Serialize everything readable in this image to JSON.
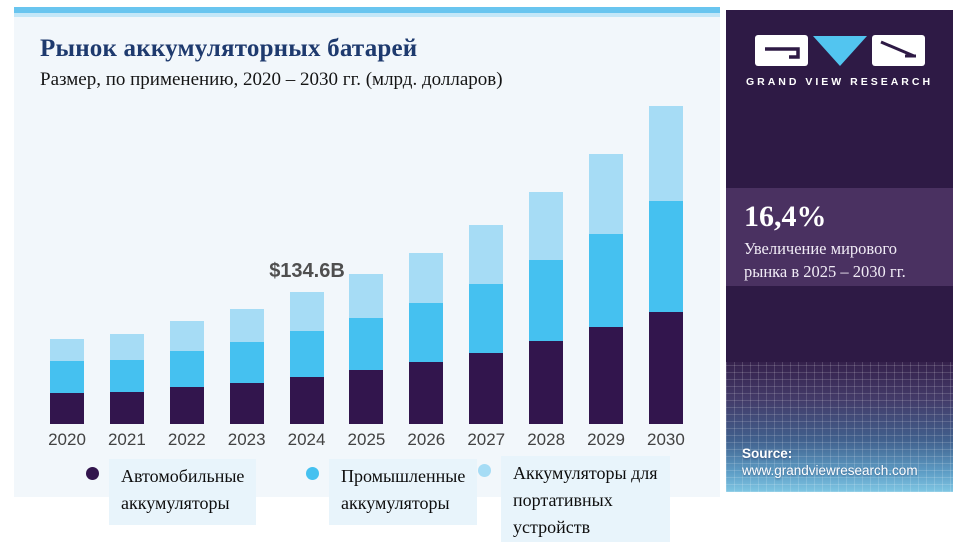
{
  "card": {
    "title": "Рынок аккумуляторных батарей",
    "subtitle": "Размер, по применению, 2020 – 2030 гг. (млрд. долларов)",
    "background": "#f2f7fb",
    "accent_strip_color": "#69c5ef"
  },
  "chart_data": {
    "type": "bar",
    "stacked": true,
    "title": "Рынок аккумуляторных батарей",
    "subtitle": "Размер, по применению, 2020 – 2030 гг. (млрд. долларов)",
    "unit": "млрд. долларов",
    "categories": [
      "2020",
      "2021",
      "2022",
      "2023",
      "2024",
      "2025",
      "2026",
      "2027",
      "2028",
      "2029",
      "2030"
    ],
    "series": [
      {
        "name": "Автомобильные аккумуляторы",
        "color": "#32154d",
        "values": [
          32,
          33,
          38,
          42,
          48,
          55,
          63,
          73,
          85,
          99,
          115
        ]
      },
      {
        "name": "Промышленные аккумуляторы",
        "color": "#45c1f0",
        "values": [
          32,
          32,
          37,
          42,
          47,
          53,
          61,
          70,
          83,
          95,
          113
        ]
      },
      {
        "name": "Аккумуляторы для портативных устройств",
        "color": "#a6dcf5",
        "values": [
          23,
          27,
          30,
          34,
          39.6,
          45,
          51,
          60,
          69,
          82,
          97
        ]
      }
    ],
    "totals_bn": [
      87,
      92,
      105,
      118,
      134.6,
      153,
      175,
      203,
      237,
      276,
      325
    ],
    "annotation": {
      "category": "2024",
      "label": "$134.6B",
      "value_bn": 134.6
    },
    "ylim": [
      0,
      340
    ],
    "grid": false,
    "axes_shown": false,
    "legend_position": "bottom"
  },
  "legend": {
    "items": [
      {
        "label": "Автомобильные\nаккумуляторы",
        "color": "#32154d"
      },
      {
        "label": "Промышленные\nаккумуляторы",
        "color": "#45c1f0"
      },
      {
        "label": "Аккумуляторы для\nпортативных\nустройств",
        "color": "#a6dcf5"
      }
    ]
  },
  "sidebar": {
    "logo_text": "GRAND VIEW RESEARCH",
    "logo_triangle_color": "#52c5f0",
    "background": "#2e1a45",
    "stat": {
      "value": "16,4%",
      "description": "Увеличение мирового рынка в 2025 – 2030 гг.",
      "band_color": "#4a3161"
    },
    "source_label": "Source:",
    "source_url": "www.grandviewresearch.com"
  }
}
